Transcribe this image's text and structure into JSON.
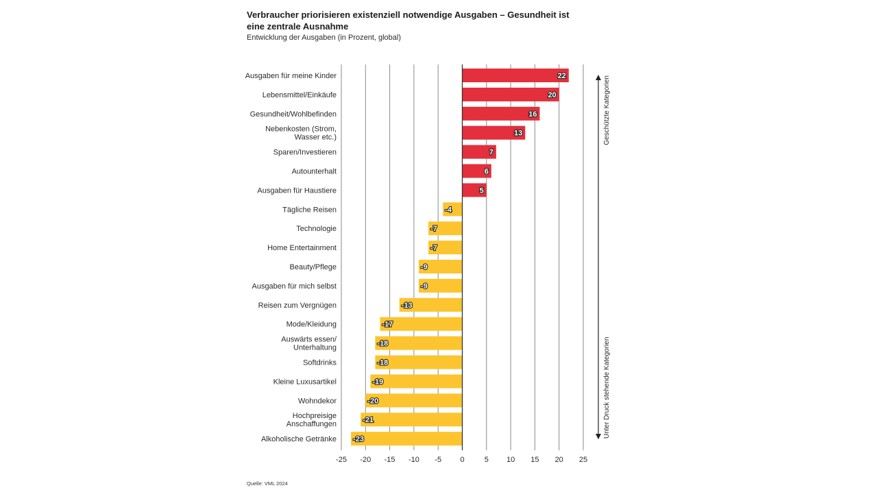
{
  "chart_data": {
    "type": "bar",
    "orientation": "horizontal",
    "title": "Verbraucher priorisieren existenziell notwendige Ausgaben – Gesundheit ist eine zentrale Ausnahme",
    "subtitle": "Entwicklung der Ausgaben (in Prozent, global)",
    "xlabel": "",
    "ylabel": "",
    "xlim": [
      -25,
      25
    ],
    "xticks": [
      -25,
      -20,
      -15,
      -10,
      -5,
      0,
      5,
      10,
      15,
      20,
      25
    ],
    "grid": true,
    "categories": [
      [
        "Ausgaben für meine Kinder"
      ],
      [
        "Lebensmittel/Einkäufe"
      ],
      [
        "Gesundheit/Wohlbefinden"
      ],
      [
        "Nebenkosten (Strom,",
        "Wasser etc.)"
      ],
      [
        "Sparen/Investieren"
      ],
      [
        "Autounterhalt"
      ],
      [
        "Ausgaben für Haustiere"
      ],
      [
        "Tägliche Reisen"
      ],
      [
        "Technologie"
      ],
      [
        "Home Entertainment"
      ],
      [
        "Beauty/Pflege"
      ],
      [
        "Ausgaben für mich selbst"
      ],
      [
        "Reisen zum Vergnügen"
      ],
      [
        "Mode/Kleidung"
      ],
      [
        "Auswärts essen/",
        "Unterhaltung"
      ],
      [
        "Softdrinks"
      ],
      [
        "Kleine Luxusartikel"
      ],
      [
        "Wohndekor"
      ],
      [
        "Hochpreisige",
        "Anschaffungen"
      ],
      [
        "Alkoholische Getränke"
      ]
    ],
    "values": [
      22,
      20,
      16,
      13,
      7,
      6,
      5,
      -4,
      -7,
      -7,
      -9,
      -9,
      -13,
      -17,
      -18,
      -18,
      -19,
      -20,
      -21,
      -23
    ],
    "colors": {
      "positive": "#e3303c",
      "negative": "#fcc52f"
    },
    "side_annotations": {
      "top": "Geschützte Kategorien",
      "bottom": "Unter Druck stehende Kategorien"
    },
    "source": "Quelle: VML 2024"
  }
}
